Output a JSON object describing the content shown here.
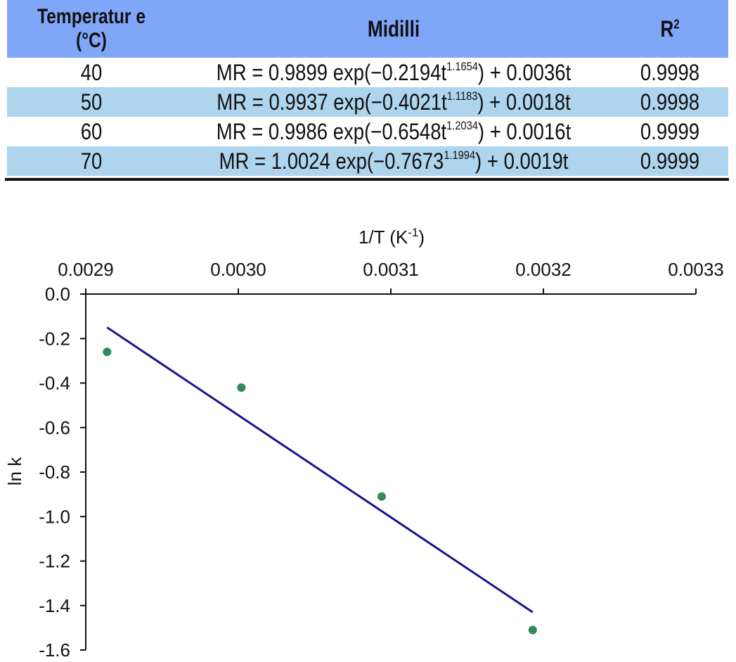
{
  "table": {
    "headers": {
      "temperature_line1": "Temperatur e",
      "temperature_line2": "(°C)",
      "model": "Midilli",
      "r2_base": "R",
      "r2_sup": "2"
    },
    "rows": [
      {
        "temperature": "40",
        "eq_pre": "MR = 0.9899 exp(−0.2194t",
        "eq_exp": "1.1654",
        "eq_post": ") + 0.0036t",
        "r2": "0.9998"
      },
      {
        "temperature": "50",
        "eq_pre": "MR = 0.9937 exp(−0.4021t",
        "eq_exp": "1.1183",
        "eq_post": ") + 0.0018t",
        "r2": "0.9998"
      },
      {
        "temperature": "60",
        "eq_pre": "MR = 0.9986 exp(−0.6548t",
        "eq_exp": "1.2034",
        "eq_post": ") + 0.0016t",
        "r2": "0.9999"
      },
      {
        "temperature": "70",
        "eq_pre": "MR = 1.0024 exp(−0.7673",
        "eq_exp": "1.1994",
        "eq_post": ") + 0.0019t",
        "r2": "0.9999"
      }
    ],
    "colors": {
      "header_bg": "#7fa6f7",
      "alt_row_bg": "#aed4ee"
    }
  },
  "chart_data": {
    "type": "scatter",
    "title": "",
    "xlabel_base": "1/T (K",
    "xlabel_sup": "-1",
    "xlabel_close": ")",
    "ylabel": "ln k",
    "xlim": [
      0.0029,
      0.0033
    ],
    "ylim": [
      -1.6,
      0.0
    ],
    "x_axis_position": "top",
    "x_ticks": [
      "0.0029",
      "0.0030",
      "0.0031",
      "0.0032",
      "0.0033"
    ],
    "x_tick_values": [
      0.0029,
      0.003,
      0.0031,
      0.0032,
      0.0033
    ],
    "y_ticks": [
      "0.0",
      "-0.2",
      "-0.4",
      "-0.6",
      "-0.8",
      "-1.0",
      "-1.2",
      "-1.4",
      "-1.6"
    ],
    "y_tick_values": [
      0.0,
      -0.2,
      -0.4,
      -0.6,
      -0.8,
      -1.0,
      -1.2,
      -1.4,
      -1.6
    ],
    "points": [
      {
        "x": 0.002914,
        "y": -0.26
      },
      {
        "x": 0.003002,
        "y": -0.42
      },
      {
        "x": 0.003094,
        "y": -0.91
      },
      {
        "x": 0.003193,
        "y": -1.51
      }
    ],
    "fit_line": {
      "x": [
        0.002914,
        0.003193
      ],
      "y": [
        -0.15,
        -1.43
      ]
    },
    "colors": {
      "points": "#2e8b57",
      "fit_line": "#14148a",
      "axis": "#111111"
    }
  }
}
